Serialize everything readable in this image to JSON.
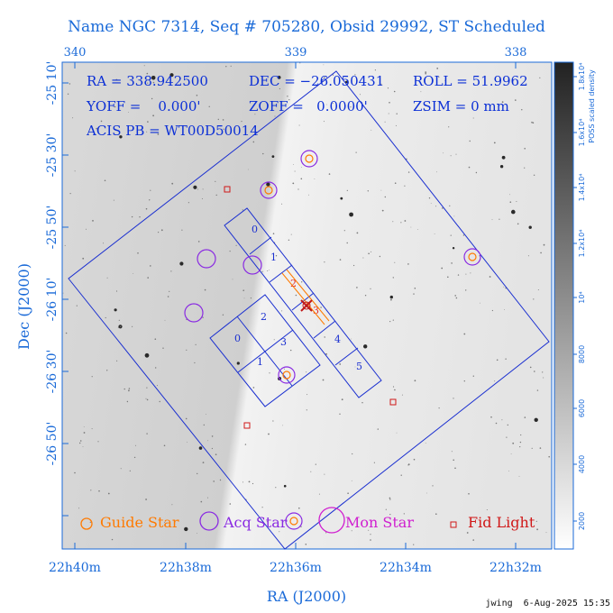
{
  "title": "Name NGC 7314, Seq # 705280, Obsid 29992, ST Scheduled",
  "top_axis_ticks": [
    "340",
    "339",
    "338"
  ],
  "bottom_axis_ticks": [
    "22h40m",
    "22h38m",
    "22h36m",
    "22h34m",
    "22h32m"
  ],
  "left_axis_ticks": [
    "-25 10'",
    "-25 30'",
    "-25 50'",
    "-26 10'",
    "-26 30'",
    "-26 50'"
  ],
  "xlabel": "RA (J2000)",
  "ylabel": "Dec (J2000)",
  "info": {
    "ra": "RA = 338.942500",
    "dec": "DEC = −26.050431",
    "roll": "ROLL = 51.9962",
    "yoff": "YOFF =    0.000'",
    "zoff": "ZOFF =   0.0000'",
    "zsim": "ZSIM = 0 mm",
    "acis": "ACIS PB = WT00D50014"
  },
  "ccd_labels_i": [
    "0",
    "1",
    "2",
    "3"
  ],
  "ccd_labels_s": [
    "0",
    "1",
    "2",
    "3",
    "4",
    "5"
  ],
  "colorbar": {
    "label": "POSS scaled density",
    "ticks": [
      "2000",
      "4000",
      "6000",
      "8000",
      "10⁴",
      "1.2x10⁴",
      "1.4x10⁴",
      "1.6x10⁴",
      "1.8x10⁴"
    ]
  },
  "legend": {
    "guide": "Guide Star",
    "acq": "Acq Star",
    "mon": "Mon Star",
    "fid": "Fid Light"
  },
  "colors": {
    "axis_text": "#1a6ad8",
    "field": "#1a2fd0",
    "guide": "#ff7a00",
    "acq": "#8a2be2",
    "mon": "#d020d0",
    "fid": "#d01818"
  },
  "footer": "jwing  6-Aug-2025 15:35"
}
